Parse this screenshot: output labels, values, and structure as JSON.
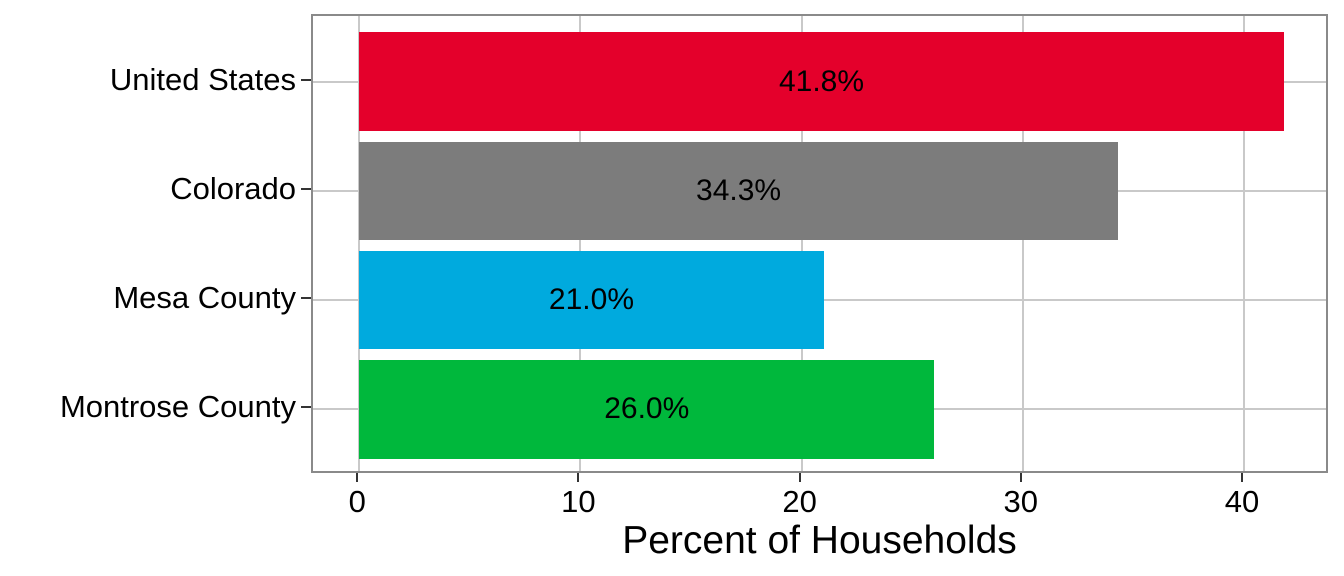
{
  "chart_data": {
    "type": "bar",
    "orientation": "horizontal",
    "title": "",
    "xlabel": "Percent of Households",
    "ylabel": "",
    "categories": [
      "United States",
      "Colorado",
      "Mesa County",
      "Montrose County"
    ],
    "values": [
      41.8,
      34.3,
      21.0,
      26.0
    ],
    "bar_labels": [
      "41.8%",
      "34.3%",
      "21.0%",
      "26.0%"
    ],
    "bar_colors": [
      "#E4002B",
      "#7C7C7C",
      "#00AADE",
      "#00B83C"
    ],
    "x_ticks": [
      0,
      10,
      20,
      30,
      40
    ],
    "x_tick_labels": [
      "0",
      "10",
      "20",
      "30",
      "40"
    ],
    "xlim": [
      -2.09,
      43.89
    ],
    "bar_width_fraction": 0.9,
    "grid": "major vertical gridlines at x ticks; horizontal gridline at each category center; no minor gridlines",
    "legend_position": "none",
    "label_position": "centered inside bar",
    "label_color": "#000000",
    "gridline_color": "#C9C9C9",
    "panel_border_color": "#8A8A8A",
    "tick_mark_color": "#333333",
    "text_color": "#000000",
    "background_color": "#FFFFFF"
  }
}
